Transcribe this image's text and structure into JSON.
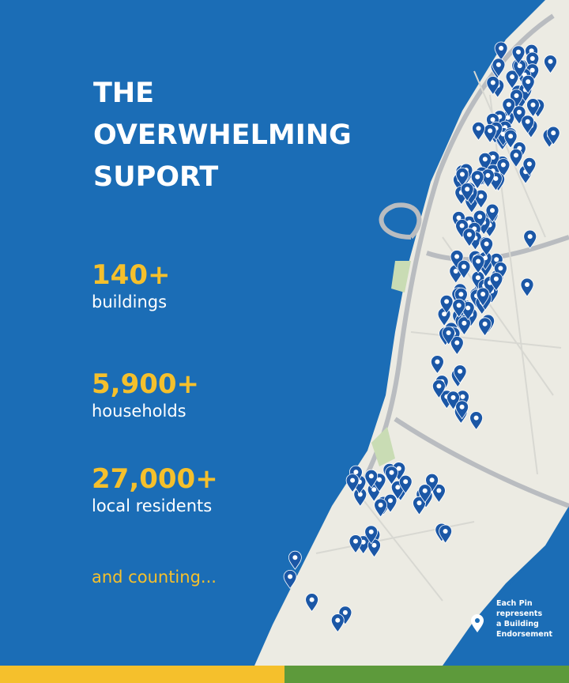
{
  "title": [
    "THE",
    "OVERWHELMING",
    "SUPORT"
  ],
  "stats": [
    {
      "value": "140+",
      "label": "buildings"
    },
    {
      "value": "5,900+",
      "label": "households"
    },
    {
      "value": "27,000+",
      "label": "local residents"
    }
  ],
  "footer": "and counting...",
  "legend": [
    "Each Pin",
    "represents",
    "a Building",
    "Endorsement"
  ]
}
